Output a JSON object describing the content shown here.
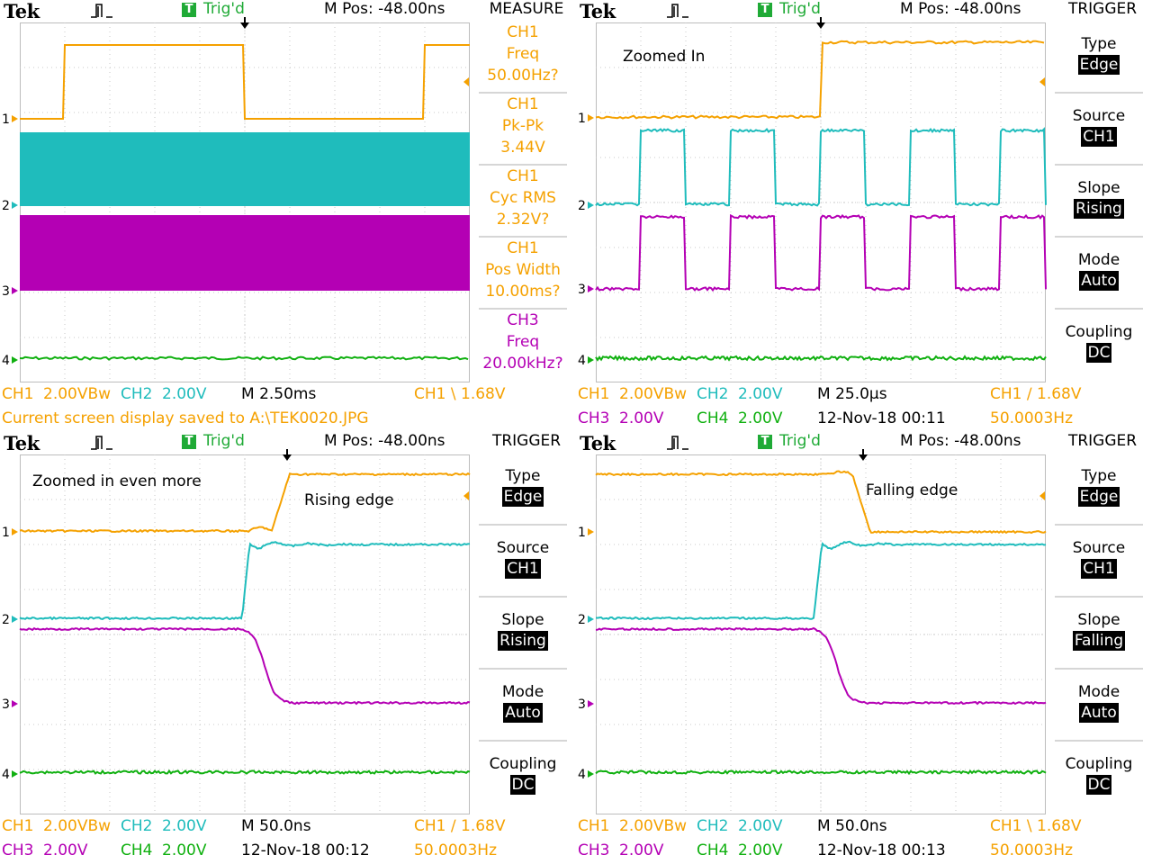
{
  "screens": [
    {
      "header": {
        "brand": "Tek",
        "trig_state_icon": "T",
        "trig_state": "Trig'd",
        "mpos": "M Pos: -48.00ns",
        "menu_title": "MEASURE"
      },
      "measure": [
        {
          "ch": "CH1",
          "name": "Freq",
          "value": "50.00Hz?",
          "color": "#f5a100"
        },
        {
          "ch": "CH1",
          "name": "Pk-Pk",
          "value": "3.44V",
          "color": "#f5a100"
        },
        {
          "ch": "CH1",
          "name": "Cyc RMS",
          "value": "2.32V?",
          "color": "#f5a100"
        },
        {
          "ch": "CH1",
          "name": "Pos Width",
          "value": "10.00ms?",
          "color": "#f5a100"
        },
        {
          "ch": "CH3",
          "name": "Freq",
          "value": "20.00kHz?",
          "color": "#b400b4"
        }
      ],
      "status": {
        "ch1": "CH1",
        "ch1_v": "2.00VBw",
        "ch2": "CH2",
        "ch2_v": "2.00V",
        "time": "M 2.50ms",
        "trig": "CH1 \\ 1.68V",
        "message": "Current screen display saved to A:\\TEK0020.JPG"
      }
    },
    {
      "header": {
        "brand": "Tek",
        "trig_state_icon": "T",
        "trig_state": "Trig'd",
        "mpos": "M Pos: -48.00ns",
        "menu_title": "TRIGGER"
      },
      "annotation": "Zoomed In",
      "trigger": {
        "type_label": "Type",
        "type": "Edge",
        "source_label": "Source",
        "source": "CH1",
        "slope_label": "Slope",
        "slope": "Rising",
        "mode_label": "Mode",
        "mode": "Auto",
        "coupling_label": "Coupling",
        "coupling": "DC"
      },
      "status": {
        "ch1": "CH1",
        "ch1_v": "2.00VBw",
        "ch2": "CH2",
        "ch2_v": "2.00V",
        "time": "M 25.0µs",
        "trig": "CH1 ∕ 1.68V",
        "ch3": "CH3",
        "ch3_v": "2.00V",
        "ch4": "CH4",
        "ch4_v": "2.00V",
        "date": "12-Nov-18 00:11",
        "freq": "50.0003Hz"
      }
    },
    {
      "header": {
        "brand": "Tek",
        "trig_state_icon": "T",
        "trig_state": "Trig'd",
        "mpos": "M Pos: -48.00ns",
        "menu_title": "TRIGGER"
      },
      "annotation": "Zoomed in even more",
      "annotation2": "Rising edge",
      "trigger": {
        "type_label": "Type",
        "type": "Edge",
        "source_label": "Source",
        "source": "CH1",
        "slope_label": "Slope",
        "slope": "Rising",
        "mode_label": "Mode",
        "mode": "Auto",
        "coupling_label": "Coupling",
        "coupling": "DC"
      },
      "status": {
        "ch1": "CH1",
        "ch1_v": "2.00VBw",
        "ch2": "CH2",
        "ch2_v": "2.00V",
        "time": "M 50.0ns",
        "trig": "CH1 ∕ 1.68V",
        "ch3": "CH3",
        "ch3_v": "2.00V",
        "ch4": "CH4",
        "ch4_v": "2.00V",
        "date": "12-Nov-18 00:12",
        "freq": "50.0003Hz"
      }
    },
    {
      "header": {
        "brand": "Tek",
        "trig_state_icon": "T",
        "trig_state": "Trig'd",
        "mpos": "M Pos: -48.00ns",
        "menu_title": "TRIGGER"
      },
      "annotation": "Falling edge",
      "trigger": {
        "type_label": "Type",
        "type": "Edge",
        "source_label": "Source",
        "source": "CH1",
        "slope_label": "Slope",
        "slope": "Falling",
        "mode_label": "Mode",
        "mode": "Auto",
        "coupling_label": "Coupling",
        "coupling": "DC"
      },
      "status": {
        "ch1": "CH1",
        "ch1_v": "2.00VBw",
        "ch2": "CH2",
        "ch2_v": "2.00V",
        "time": "M 50.0ns",
        "trig": "CH1 \\ 1.68V",
        "ch3": "CH3",
        "ch3_v": "2.00V",
        "ch4": "CH4",
        "ch4_v": "2.00V",
        "date": "12-Nov-18 00:13",
        "freq": "50.0003Hz"
      }
    }
  ],
  "channel_markers": [
    "1",
    "2",
    "3",
    "4"
  ],
  "colors": {
    "ch1": "#f5a100",
    "ch2": "#1fbcbc",
    "ch3": "#b400b4",
    "ch4": "#10b010",
    "trig_green": "#1faa36"
  }
}
